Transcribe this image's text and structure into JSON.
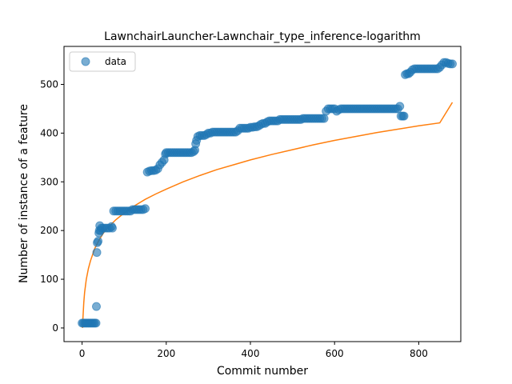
{
  "chart_data": {
    "type": "scatter",
    "title": "LawnchairLauncher-Lawnchair_type_inference-logarithm",
    "xlabel": "Commit number",
    "ylabel": "Number of instance of a feature",
    "xlim": [
      -43,
      900
    ],
    "ylim": [
      -28,
      578
    ],
    "xticks": [
      0,
      200,
      400,
      600,
      800
    ],
    "yticks": [
      0,
      100,
      200,
      300,
      400,
      500
    ],
    "grid": false,
    "legend": {
      "placement": "upper-left",
      "entries": [
        "data"
      ]
    },
    "colors": {
      "data": "#1f77b4",
      "fit": "#ff7f0e"
    },
    "series": [
      {
        "name": "data",
        "kind": "scatter",
        "points": [
          [
            0,
            10
          ],
          [
            3,
            10
          ],
          [
            6,
            10
          ],
          [
            9,
            10
          ],
          [
            12,
            10
          ],
          [
            15,
            10
          ],
          [
            18,
            10
          ],
          [
            21,
            10
          ],
          [
            24,
            10
          ],
          [
            27,
            10
          ],
          [
            30,
            10
          ],
          [
            33,
            10
          ],
          [
            34,
            44
          ],
          [
            35,
            155
          ],
          [
            36,
            175
          ],
          [
            38,
            178
          ],
          [
            40,
            195
          ],
          [
            41,
            200
          ],
          [
            42,
            210
          ],
          [
            44,
            200
          ],
          [
            46,
            205
          ],
          [
            50,
            205
          ],
          [
            55,
            205
          ],
          [
            60,
            205
          ],
          [
            65,
            205
          ],
          [
            70,
            208
          ],
          [
            72,
            205
          ],
          [
            75,
            240
          ],
          [
            80,
            240
          ],
          [
            85,
            240
          ],
          [
            90,
            240
          ],
          [
            95,
            240
          ],
          [
            100,
            240
          ],
          [
            105,
            240
          ],
          [
            110,
            240
          ],
          [
            115,
            240
          ],
          [
            120,
            243
          ],
          [
            125,
            243
          ],
          [
            130,
            243
          ],
          [
            135,
            243
          ],
          [
            140,
            243
          ],
          [
            145,
            243
          ],
          [
            150,
            245
          ],
          [
            155,
            320
          ],
          [
            160,
            322
          ],
          [
            165,
            323
          ],
          [
            170,
            323
          ],
          [
            175,
            324
          ],
          [
            180,
            327
          ],
          [
            185,
            335
          ],
          [
            190,
            340
          ],
          [
            195,
            345
          ],
          [
            198,
            357
          ],
          [
            200,
            360
          ],
          [
            205,
            360
          ],
          [
            210,
            360
          ],
          [
            215,
            360
          ],
          [
            220,
            360
          ],
          [
            225,
            360
          ],
          [
            230,
            360
          ],
          [
            235,
            360
          ],
          [
            240,
            360
          ],
          [
            245,
            360
          ],
          [
            250,
            360
          ],
          [
            255,
            360
          ],
          [
            260,
            360
          ],
          [
            265,
            362
          ],
          [
            268,
            365
          ],
          [
            270,
            378
          ],
          [
            272,
            385
          ],
          [
            275,
            393
          ],
          [
            280,
            395
          ],
          [
            285,
            395
          ],
          [
            290,
            395
          ],
          [
            295,
            397
          ],
          [
            300,
            400
          ],
          [
            305,
            400
          ],
          [
            310,
            402
          ],
          [
            315,
            402
          ],
          [
            320,
            402
          ],
          [
            325,
            402
          ],
          [
            330,
            402
          ],
          [
            335,
            402
          ],
          [
            340,
            402
          ],
          [
            345,
            402
          ],
          [
            350,
            402
          ],
          [
            355,
            402
          ],
          [
            360,
            402
          ],
          [
            365,
            402
          ],
          [
            370,
            405
          ],
          [
            375,
            410
          ],
          [
            380,
            410
          ],
          [
            385,
            410
          ],
          [
            390,
            410
          ],
          [
            395,
            410
          ],
          [
            400,
            412
          ],
          [
            405,
            412
          ],
          [
            410,
            413
          ],
          [
            415,
            413
          ],
          [
            420,
            415
          ],
          [
            425,
            418
          ],
          [
            430,
            420
          ],
          [
            435,
            420
          ],
          [
            440,
            423
          ],
          [
            445,
            425
          ],
          [
            450,
            425
          ],
          [
            455,
            425
          ],
          [
            460,
            425
          ],
          [
            465,
            425
          ],
          [
            470,
            428
          ],
          [
            475,
            428
          ],
          [
            480,
            428
          ],
          [
            485,
            428
          ],
          [
            490,
            428
          ],
          [
            495,
            428
          ],
          [
            500,
            428
          ],
          [
            505,
            428
          ],
          [
            510,
            428
          ],
          [
            515,
            428
          ],
          [
            520,
            428
          ],
          [
            525,
            430
          ],
          [
            530,
            430
          ],
          [
            535,
            430
          ],
          [
            540,
            430
          ],
          [
            545,
            430
          ],
          [
            550,
            430
          ],
          [
            555,
            430
          ],
          [
            560,
            430
          ],
          [
            565,
            430
          ],
          [
            570,
            430
          ],
          [
            575,
            430
          ],
          [
            580,
            445
          ],
          [
            585,
            450
          ],
          [
            590,
            450
          ],
          [
            595,
            450
          ],
          [
            600,
            450
          ],
          [
            605,
            445
          ],
          [
            610,
            448
          ],
          [
            615,
            450
          ],
          [
            620,
            450
          ],
          [
            625,
            450
          ],
          [
            630,
            450
          ],
          [
            635,
            450
          ],
          [
            640,
            450
          ],
          [
            645,
            450
          ],
          [
            650,
            450
          ],
          [
            655,
            450
          ],
          [
            660,
            450
          ],
          [
            665,
            450
          ],
          [
            670,
            450
          ],
          [
            675,
            450
          ],
          [
            680,
            450
          ],
          [
            685,
            450
          ],
          [
            690,
            450
          ],
          [
            695,
            450
          ],
          [
            700,
            450
          ],
          [
            705,
            450
          ],
          [
            710,
            450
          ],
          [
            715,
            450
          ],
          [
            720,
            450
          ],
          [
            725,
            450
          ],
          [
            730,
            450
          ],
          [
            735,
            450
          ],
          [
            740,
            450
          ],
          [
            745,
            450
          ],
          [
            750,
            450
          ],
          [
            755,
            455
          ],
          [
            758,
            435
          ],
          [
            762,
            435
          ],
          [
            765,
            435
          ],
          [
            768,
            520
          ],
          [
            772,
            522
          ],
          [
            776,
            522
          ],
          [
            780,
            525
          ],
          [
            785,
            530
          ],
          [
            790,
            532
          ],
          [
            795,
            532
          ],
          [
            800,
            532
          ],
          [
            805,
            532
          ],
          [
            810,
            532
          ],
          [
            815,
            532
          ],
          [
            820,
            532
          ],
          [
            825,
            532
          ],
          [
            830,
            532
          ],
          [
            835,
            532
          ],
          [
            840,
            532
          ],
          [
            845,
            532
          ],
          [
            850,
            535
          ],
          [
            855,
            540
          ],
          [
            860,
            545
          ],
          [
            865,
            545
          ],
          [
            870,
            543
          ],
          [
            875,
            542
          ],
          [
            880,
            542
          ]
        ]
      },
      {
        "name": "",
        "kind": "line",
        "points": [
          [
            1,
            0
          ],
          [
            2,
            20
          ],
          [
            4,
            52
          ],
          [
            6,
            73
          ],
          [
            10,
            100
          ],
          [
            15,
            122
          ],
          [
            20,
            138
          ],
          [
            30,
            163
          ],
          [
            40,
            180
          ],
          [
            50,
            194
          ],
          [
            60,
            205
          ],
          [
            80,
            222
          ],
          [
            100,
            236
          ],
          [
            125,
            251
          ],
          [
            150,
            264
          ],
          [
            175,
            275
          ],
          [
            200,
            285
          ],
          [
            240,
            300
          ],
          [
            280,
            313
          ],
          [
            320,
            325
          ],
          [
            360,
            335
          ],
          [
            400,
            345
          ],
          [
            450,
            356
          ],
          [
            500,
            366
          ],
          [
            550,
            376
          ],
          [
            600,
            385
          ],
          [
            650,
            393
          ],
          [
            700,
            401
          ],
          [
            750,
            408
          ],
          [
            800,
            415
          ],
          [
            850,
            421
          ],
          [
            880,
            463
          ]
        ]
      }
    ]
  }
}
